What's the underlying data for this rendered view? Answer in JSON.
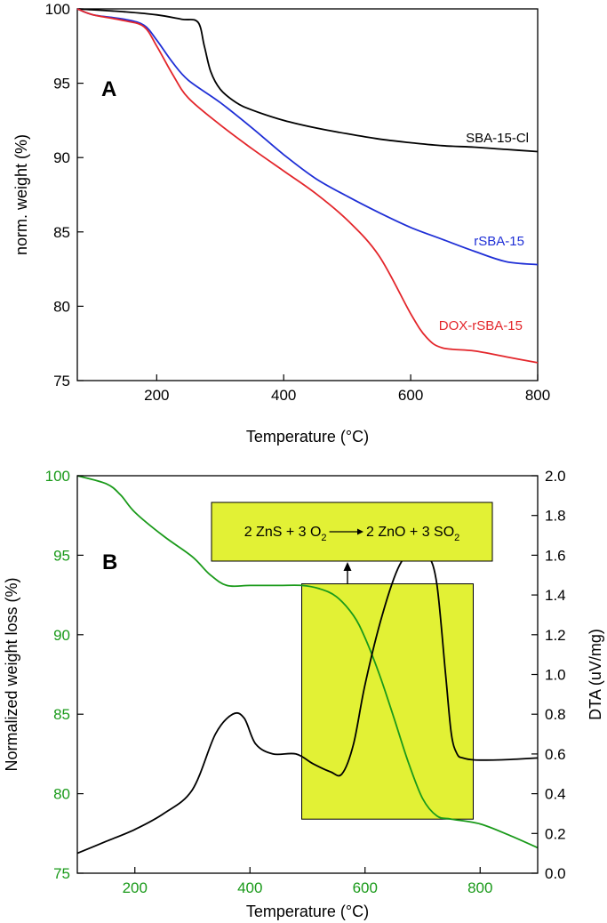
{
  "chart_data": [
    {
      "type": "line",
      "panel_label": "A",
      "xlabel": "Temperature (°C)",
      "ylabel": "norm. weight (%)",
      "xlim": [
        75,
        800
      ],
      "ylim": [
        75,
        100
      ],
      "xticks": [
        200,
        400,
        600,
        800
      ],
      "yticks": [
        75,
        80,
        85,
        90,
        95,
        100
      ],
      "grid": false,
      "series": [
        {
          "name": "SBA-15-Cl",
          "color": "#000000",
          "x": [
            75,
            150,
            200,
            240,
            265,
            275,
            285,
            300,
            325,
            350,
            400,
            450,
            500,
            550,
            600,
            650,
            700,
            750,
            800
          ],
          "y": [
            100,
            99.8,
            99.6,
            99.3,
            99.1,
            97.5,
            95.8,
            94.6,
            93.7,
            93.2,
            92.5,
            92.0,
            91.6,
            91.25,
            91.0,
            90.8,
            90.7,
            90.55,
            90.4
          ]
        },
        {
          "name": "rSBA-15",
          "color": "#1f2fd6",
          "x": [
            75,
            100,
            150,
            180,
            200,
            225,
            250,
            300,
            350,
            400,
            450,
            500,
            550,
            600,
            650,
            700,
            750,
            800
          ],
          "y": [
            100,
            99.6,
            99.3,
            98.9,
            97.9,
            96.4,
            95.2,
            93.7,
            92.0,
            90.2,
            88.6,
            87.4,
            86.3,
            85.3,
            84.5,
            83.7,
            83.0,
            82.8
          ]
        },
        {
          "name": "DOX-rSBA-15",
          "color": "#e3262b",
          "x": [
            75,
            100,
            150,
            180,
            200,
            225,
            250,
            300,
            350,
            400,
            450,
            500,
            550,
            600,
            625,
            650,
            700,
            750,
            800
          ],
          "y": [
            100,
            99.6,
            99.2,
            98.8,
            97.5,
            95.6,
            94.0,
            92.2,
            90.6,
            89.1,
            87.6,
            85.8,
            83.4,
            79.5,
            77.9,
            77.2,
            77.0,
            76.6,
            76.2
          ]
        }
      ]
    },
    {
      "type": "line",
      "panel_label": "B",
      "xlabel": "Temperature (°C)",
      "ylabel": "Normalized weight loss (%)",
      "y2label": "DTA (uV/mg)",
      "xlim": [
        100,
        900
      ],
      "ylim": [
        75,
        100
      ],
      "y2lim": [
        0.0,
        2.0
      ],
      "xticks": [
        200,
        400,
        600,
        800
      ],
      "yticks": [
        75,
        80,
        85,
        90,
        95,
        100
      ],
      "y2ticks": [
        "0.0",
        "0.2",
        "0.4",
        "0.6",
        "0.8",
        "1.0",
        "1.2",
        "1.4",
        "1.6",
        "1.8",
        "2.0"
      ],
      "grid": false,
      "left_axis_color": "#1a9a1a",
      "highlight_color": "#e2f135",
      "annotation": {
        "parts": [
          "2 ZnS + 3 O",
          "2",
          " ",
          "2 ZnO + 3 SO",
          "2"
        ]
      },
      "series": [
        {
          "name": "Normalized weight loss",
          "axis": "left",
          "color": "#1a9a1a",
          "x": [
            100,
            150,
            175,
            200,
            250,
            300,
            330,
            360,
            400,
            450,
            490,
            520,
            550,
            580,
            600,
            625,
            650,
            675,
            700,
            725,
            750,
            800,
            850,
            900
          ],
          "y": [
            100,
            99.5,
            98.8,
            97.7,
            96.2,
            94.9,
            93.8,
            93.1,
            93.1,
            93.1,
            93.1,
            92.9,
            92.4,
            91.2,
            89.8,
            87.5,
            84.8,
            82.0,
            79.7,
            78.6,
            78.4,
            78.1,
            77.4,
            76.6
          ]
        },
        {
          "name": "DTA",
          "axis": "right",
          "color": "#000000",
          "x": [
            100,
            150,
            200,
            250,
            300,
            340,
            370,
            390,
            410,
            440,
            480,
            510,
            540,
            560,
            580,
            600,
            630,
            660,
            690,
            710,
            725,
            740,
            750,
            760,
            770,
            790,
            830,
            870,
            900
          ],
          "y": [
            0.1,
            0.16,
            0.22,
            0.3,
            0.42,
            0.7,
            0.8,
            0.78,
            0.65,
            0.6,
            0.6,
            0.55,
            0.51,
            0.5,
            0.65,
            0.95,
            1.3,
            1.55,
            1.64,
            1.6,
            1.45,
            1.0,
            0.7,
            0.6,
            0.58,
            0.57,
            0.57,
            0.575,
            0.58
          ]
        }
      ]
    }
  ]
}
